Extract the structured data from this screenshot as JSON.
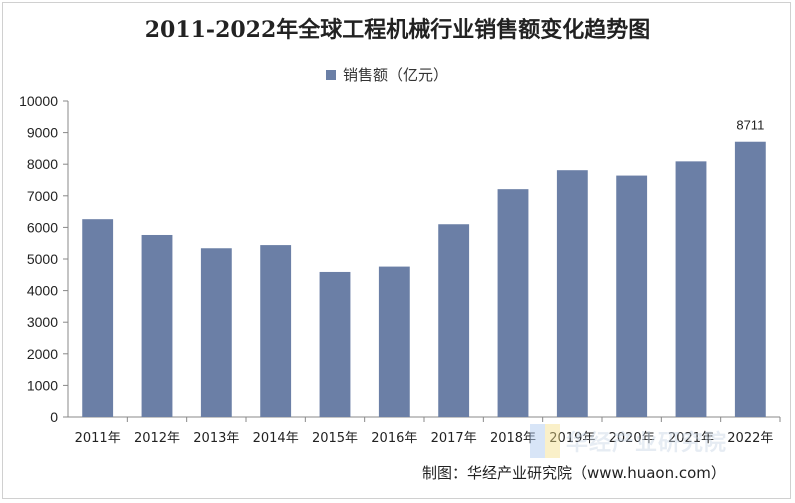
{
  "chart_data": {
    "type": "bar",
    "title": "2011-2022年全球工程机械行业销售额变化趋势图",
    "categories": [
      "2011年",
      "2012年",
      "2013年",
      "2014年",
      "2015年",
      "2016年",
      "2017年",
      "2018年",
      "2019年",
      "2020年",
      "2021年",
      "2022年"
    ],
    "series": [
      {
        "name": "销售额（亿元）",
        "values": [
          6260,
          5760,
          5340,
          5440,
          4590,
          4760,
          6100,
          7210,
          7810,
          7640,
          8090,
          8711
        ]
      }
    ],
    "data_labels": [
      {
        "category": "2022年",
        "text": "8711"
      }
    ],
    "ylim": [
      0,
      10000
    ],
    "yticks": [
      0,
      1000,
      2000,
      3000,
      4000,
      5000,
      6000,
      7000,
      8000,
      9000,
      10000
    ],
    "xlabel": "",
    "ylabel": "",
    "grid": false,
    "legend_position": "top",
    "bar_color": "#6b7fa6"
  },
  "source": "制图：华经产业研究院（www.huaon.com）",
  "watermark": "华经产业研究院",
  "watermark_colors": [
    "#a9c7ee",
    "#f4e08a"
  ]
}
